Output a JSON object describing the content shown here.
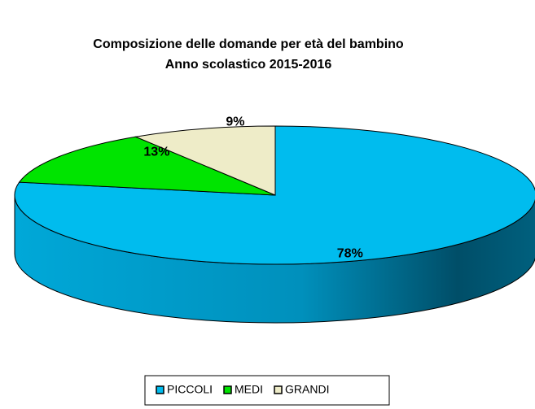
{
  "chart_data": {
    "type": "pie",
    "title": "Composizione delle domande per età del bambino",
    "subtitle": "Anno scolastico 2015-2016",
    "categories": [
      "PICCOLI",
      "MEDI",
      "GRANDI"
    ],
    "values": [
      78,
      13,
      9
    ],
    "value_labels": [
      "78%",
      "13%",
      "9%"
    ],
    "colors": [
      "#00bcee",
      "#00e400",
      "#eeecc8"
    ],
    "legend": "bottom"
  }
}
